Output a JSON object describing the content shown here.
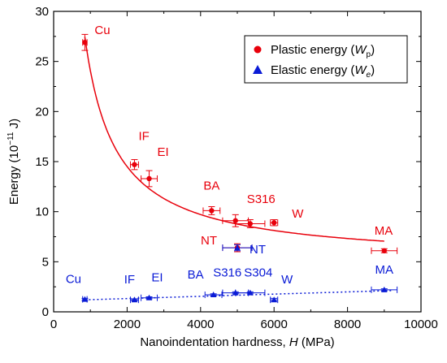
{
  "chart_data": {
    "type": "scatter",
    "xlabel": "Nanoindentation hardness, ",
    "xlabel_var": "H",
    "xlabel_unit": " (MPa)",
    "ylabel": "Energy (10",
    "ylabel_exp": "−11",
    "ylabel_unit": " J)",
    "xlim": [
      0,
      10000
    ],
    "ylim": [
      0,
      30
    ],
    "xticks": [
      0,
      2000,
      4000,
      6000,
      8000,
      10000
    ],
    "yticks": [
      0,
      5,
      10,
      15,
      20,
      25,
      30
    ],
    "grid": false,
    "legend_position": "top-right",
    "colors": {
      "plastic": "#e8000b",
      "elastic": "#0a1bd6"
    },
    "series": [
      {
        "name": "Plastic energy (",
        "name_var": "W",
        "name_sub": "p",
        "name_end": ")",
        "marker": "circle",
        "fit": "solid",
        "points": [
          {
            "label": "Cu",
            "x": 850,
            "y": 26.9,
            "xerr": 60,
            "yerr": 0.8
          },
          {
            "label": "IF",
            "x": 2200,
            "y": 14.7,
            "xerr": 110,
            "yerr": 0.5
          },
          {
            "label": "EI",
            "x": 2600,
            "y": 13.3,
            "xerr": 220,
            "yerr": 0.8
          },
          {
            "label": "BA",
            "x": 4300,
            "y": 10.1,
            "xerr": 230,
            "yerr": 0.4
          },
          {
            "label": "S316",
            "x": 4950,
            "y": 9.1,
            "xerr": 350,
            "yerr": 0.6
          },
          {
            "label": "W",
            "x": 6000,
            "y": 8.9,
            "xerr": 100,
            "yerr": 0.3
          },
          {
            "label": "NT",
            "x": 5000,
            "y": 6.4,
            "xerr": 400,
            "yerr": 0.4
          },
          {
            "label": "MA",
            "x": 9000,
            "y": 6.1,
            "xerr": 350,
            "yerr": 0.2
          },
          {
            "label": "",
            "x": 5350,
            "y": 8.8,
            "xerr": 400,
            "yerr": 0.4
          }
        ]
      },
      {
        "name": "Elastic energy (",
        "name_var": "W",
        "name_sub": "e",
        "name_end": ")",
        "marker": "triangle",
        "fit": "dotted",
        "points": [
          {
            "label": "Cu",
            "x": 850,
            "y": 1.25,
            "xerr": 60,
            "yerr": 0.1
          },
          {
            "label": "IF",
            "x": 2200,
            "y": 1.2,
            "xerr": 110,
            "yerr": 0.1
          },
          {
            "label": "EI",
            "x": 2600,
            "y": 1.4,
            "xerr": 220,
            "yerr": 0.1
          },
          {
            "label": "BA",
            "x": 4350,
            "y": 1.7,
            "xerr": 230,
            "yerr": 0.1
          },
          {
            "label": "S316",
            "x": 4950,
            "y": 1.9,
            "xerr": 350,
            "yerr": 0.1
          },
          {
            "label": "S304",
            "x": 5350,
            "y": 1.9,
            "xerr": 400,
            "yerr": 0.1
          },
          {
            "label": "W",
            "x": 6000,
            "y": 1.2,
            "xerr": 100,
            "yerr": 0.15
          },
          {
            "label": "NT",
            "x": 5000,
            "y": 6.4,
            "xerr": 400,
            "yerr": 0.3
          },
          {
            "label": "MA",
            "x": 9000,
            "y": 2.2,
            "xerr": 350,
            "yerr": 0.1
          }
        ]
      }
    ]
  }
}
